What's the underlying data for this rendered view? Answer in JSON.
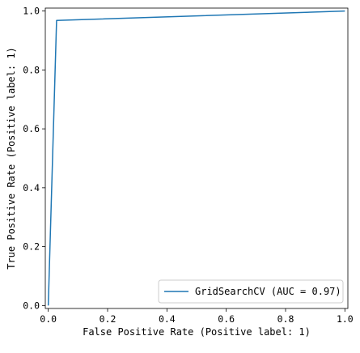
{
  "chart_data": {
    "type": "line",
    "title": "",
    "xlabel": "False Positive Rate (Positive label: 1)",
    "ylabel": "True Positive Rate (Positive label: 1)",
    "xlim": [
      -0.01,
      1.01
    ],
    "ylim": [
      -0.01,
      1.01
    ],
    "xticks": [
      "0.0",
      "0.2",
      "0.4",
      "0.6",
      "0.8",
      "1.0"
    ],
    "yticks": [
      "0.0",
      "0.2",
      "0.4",
      "0.6",
      "0.8",
      "1.0"
    ],
    "grid": false,
    "legend_position": "lower-right",
    "series": [
      {
        "name": "GridSearchCV (AUC = 0.97)",
        "color": "#1f77b4",
        "x": [
          0.0,
          0.028,
          1.0
        ],
        "y": [
          0.0,
          0.968,
          1.0
        ]
      }
    ]
  }
}
